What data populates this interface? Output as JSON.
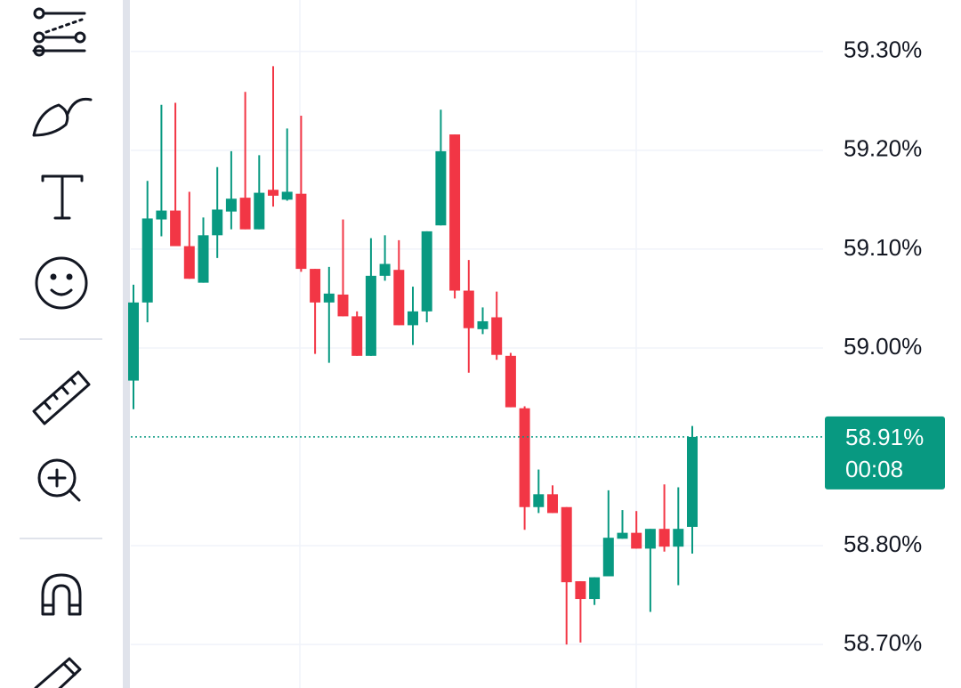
{
  "chart_data": {
    "type": "candlestick",
    "categories": [
      null,
      null,
      null,
      null,
      null,
      null,
      null,
      null,
      null,
      null,
      null,
      null,
      null,
      null,
      null,
      null,
      null,
      null,
      null,
      null,
      null,
      null,
      null,
      null,
      null,
      null,
      null,
      null,
      null,
      null,
      null,
      null,
      null,
      null,
      null,
      null,
      null,
      null,
      null,
      null,
      null
    ],
    "open": [
      58.967,
      59.046,
      59.13,
      59.139,
      59.103,
      59.066,
      59.114,
      59.138,
      59.152,
      59.12,
      59.16,
      59.15,
      59.156,
      59.08,
      59.046,
      59.054,
      59.032,
      58.992,
      59.073,
      59.079,
      59.023,
      59.037,
      59.124,
      59.216,
      59.058,
      59.019,
      59.031,
      58.992,
      58.939,
      58.839,
      58.852,
      58.839,
      58.764,
      58.746,
      58.769,
      58.807,
      58.813,
      58.797,
      58.817,
      58.799,
      58.819
    ],
    "high": [
      59.064,
      59.169,
      59.246,
      59.248,
      59.158,
      59.132,
      59.183,
      59.199,
      59.259,
      59.195,
      59.285,
      59.222,
      59.235,
      59.08,
      59.082,
      59.13,
      59.037,
      59.111,
      59.114,
      59.109,
      59.062,
      59.118,
      59.241,
      59.216,
      59.089,
      59.041,
      59.057,
      58.995,
      58.941,
      58.877,
      58.861,
      58.839,
      58.764,
      58.768,
      58.856,
      58.836,
      58.835,
      58.817,
      58.862,
      58.859,
      58.921
    ],
    "low": [
      58.938,
      59.026,
      59.113,
      59.103,
      59.07,
      59.066,
      59.091,
      59.12,
      59.12,
      59.12,
      59.143,
      59.149,
      59.077,
      58.994,
      58.985,
      59.032,
      58.992,
      58.992,
      59.068,
      59.023,
      59.003,
      59.026,
      59.124,
      59.05,
      58.975,
      59.014,
      58.988,
      58.94,
      58.816,
      58.833,
      58.833,
      58.7,
      58.702,
      58.74,
      58.769,
      58.807,
      58.797,
      58.733,
      58.794,
      58.76,
      58.792
    ],
    "close": [
      59.046,
      59.131,
      59.139,
      59.103,
      59.07,
      59.114,
      59.14,
      59.151,
      59.12,
      59.157,
      59.154,
      59.158,
      59.08,
      59.046,
      59.055,
      59.032,
      58.992,
      59.073,
      59.085,
      59.023,
      59.037,
      59.118,
      59.199,
      59.058,
      59.02,
      59.027,
      58.993,
      58.94,
      58.839,
      58.852,
      58.833,
      58.763,
      58.746,
      58.768,
      58.808,
      58.813,
      58.797,
      58.817,
      58.799,
      58.817,
      58.91
    ],
    "up_color": "#089981",
    "down_color": "#f23645",
    "ylim": [
      58.656,
      59.352
    ],
    "yticks": [
      {
        "value": 59.3,
        "label": "59.30%"
      },
      {
        "value": 59.2,
        "label": "59.20%"
      },
      {
        "value": 59.1,
        "label": "59.10%"
      },
      {
        "value": 59.0,
        "label": "59.00%"
      },
      {
        "value": 58.8,
        "label": "58.80%"
      },
      {
        "value": 58.7,
        "label": "58.70%"
      }
    ],
    "grid": true,
    "last_price": {
      "value": 58.91,
      "label": "58.91%"
    },
    "countdown": "00:08"
  }
}
